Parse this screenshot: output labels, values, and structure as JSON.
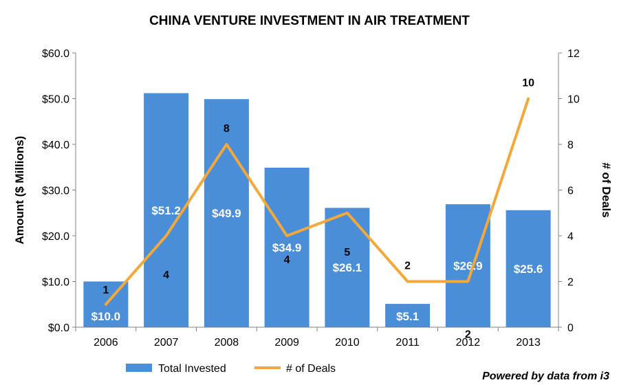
{
  "chart_data": {
    "type": "bar",
    "title": "CHINA VENTURE INVESTMENT IN AIR TREATMENT",
    "categories": [
      "2006",
      "2007",
      "2008",
      "2009",
      "2010",
      "2011",
      "2012",
      "2013"
    ],
    "series": [
      {
        "name": "Total Invested",
        "type": "bar",
        "axis": "left",
        "color": "#4A8ED8",
        "values": [
          10.0,
          51.2,
          49.9,
          34.9,
          26.1,
          5.1,
          26.9,
          25.6
        ],
        "labels": [
          "$10.0",
          "$51.2",
          "$49.9",
          "$34.9",
          "$26.1",
          "$5.1",
          "$26.9",
          "$25.6"
        ]
      },
      {
        "name": "# of Deals",
        "type": "line",
        "axis": "right",
        "color": "#F5A83A",
        "values": [
          1,
          4,
          8,
          4,
          5,
          2,
          2,
          10
        ],
        "labels": [
          "1",
          "4",
          "8",
          "4",
          "5",
          "2",
          "2",
          "10"
        ]
      }
    ],
    "ylabel": "Amount ($ Millions)",
    "ylim": [
      0,
      60
    ],
    "yticks": [
      "$0.0",
      "$10.0",
      "$20.0",
      "$30.0",
      "$40.0",
      "$50.0",
      "$60.0"
    ],
    "y2label": "# of Deals",
    "y2lim": [
      0,
      12
    ],
    "y2ticks": [
      "0",
      "2",
      "4",
      "6",
      "8",
      "10",
      "12"
    ],
    "grid": false,
    "legend_position": "bottom"
  },
  "footer": "Powered by data from i3"
}
